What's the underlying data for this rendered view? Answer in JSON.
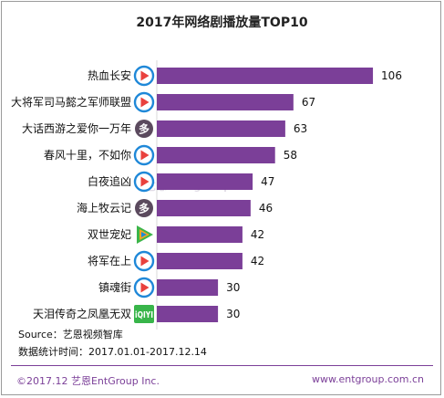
{
  "chart_data": {
    "type": "bar",
    "orientation": "horizontal",
    "title": "2017年网络剧播放量TOP10",
    "categories": [
      "热血长安",
      "大将军司马懿之军师联盟",
      "大话西游之爱你一万年",
      "春风十里，不如你",
      "白夜追凶",
      "海上牧云记",
      "双世宠妃",
      "将军在上",
      "镇魂街",
      "天泪传奇之凤凰无双"
    ],
    "values": [
      106,
      67,
      63,
      58,
      47,
      46,
      42,
      42,
      30,
      30
    ],
    "platforms": [
      "youku-icon",
      "youku-icon",
      "mango-tv-icon",
      "youku-icon",
      "youku-icon",
      "mango-tv-icon",
      "tencent-video-icon",
      "youku-icon",
      "youku-icon",
      "iqiyi-icon"
    ],
    "xlim": [
      0,
      110
    ],
    "grid": false,
    "bar_color": "#7b3f98"
  },
  "notes": {
    "source": "Source：艺恩视频智库",
    "period": "数据统计时间：2017.01.01-2017.12.14"
  },
  "footer": {
    "copyright": "©2017.12 艺恩EntGroup Inc.",
    "website": "www.entgroup.com.cn"
  },
  "watermark": "艺恩 entgroup",
  "colors": {
    "bar": "#7b3f98",
    "youku": "#1f88d8",
    "mango": "#5b4a5e",
    "iqiyi": "#38b54a",
    "tencent_green": "#3cb54a",
    "tencent_orange": "#f5a623",
    "tencent_blue": "#1e8bd6"
  }
}
